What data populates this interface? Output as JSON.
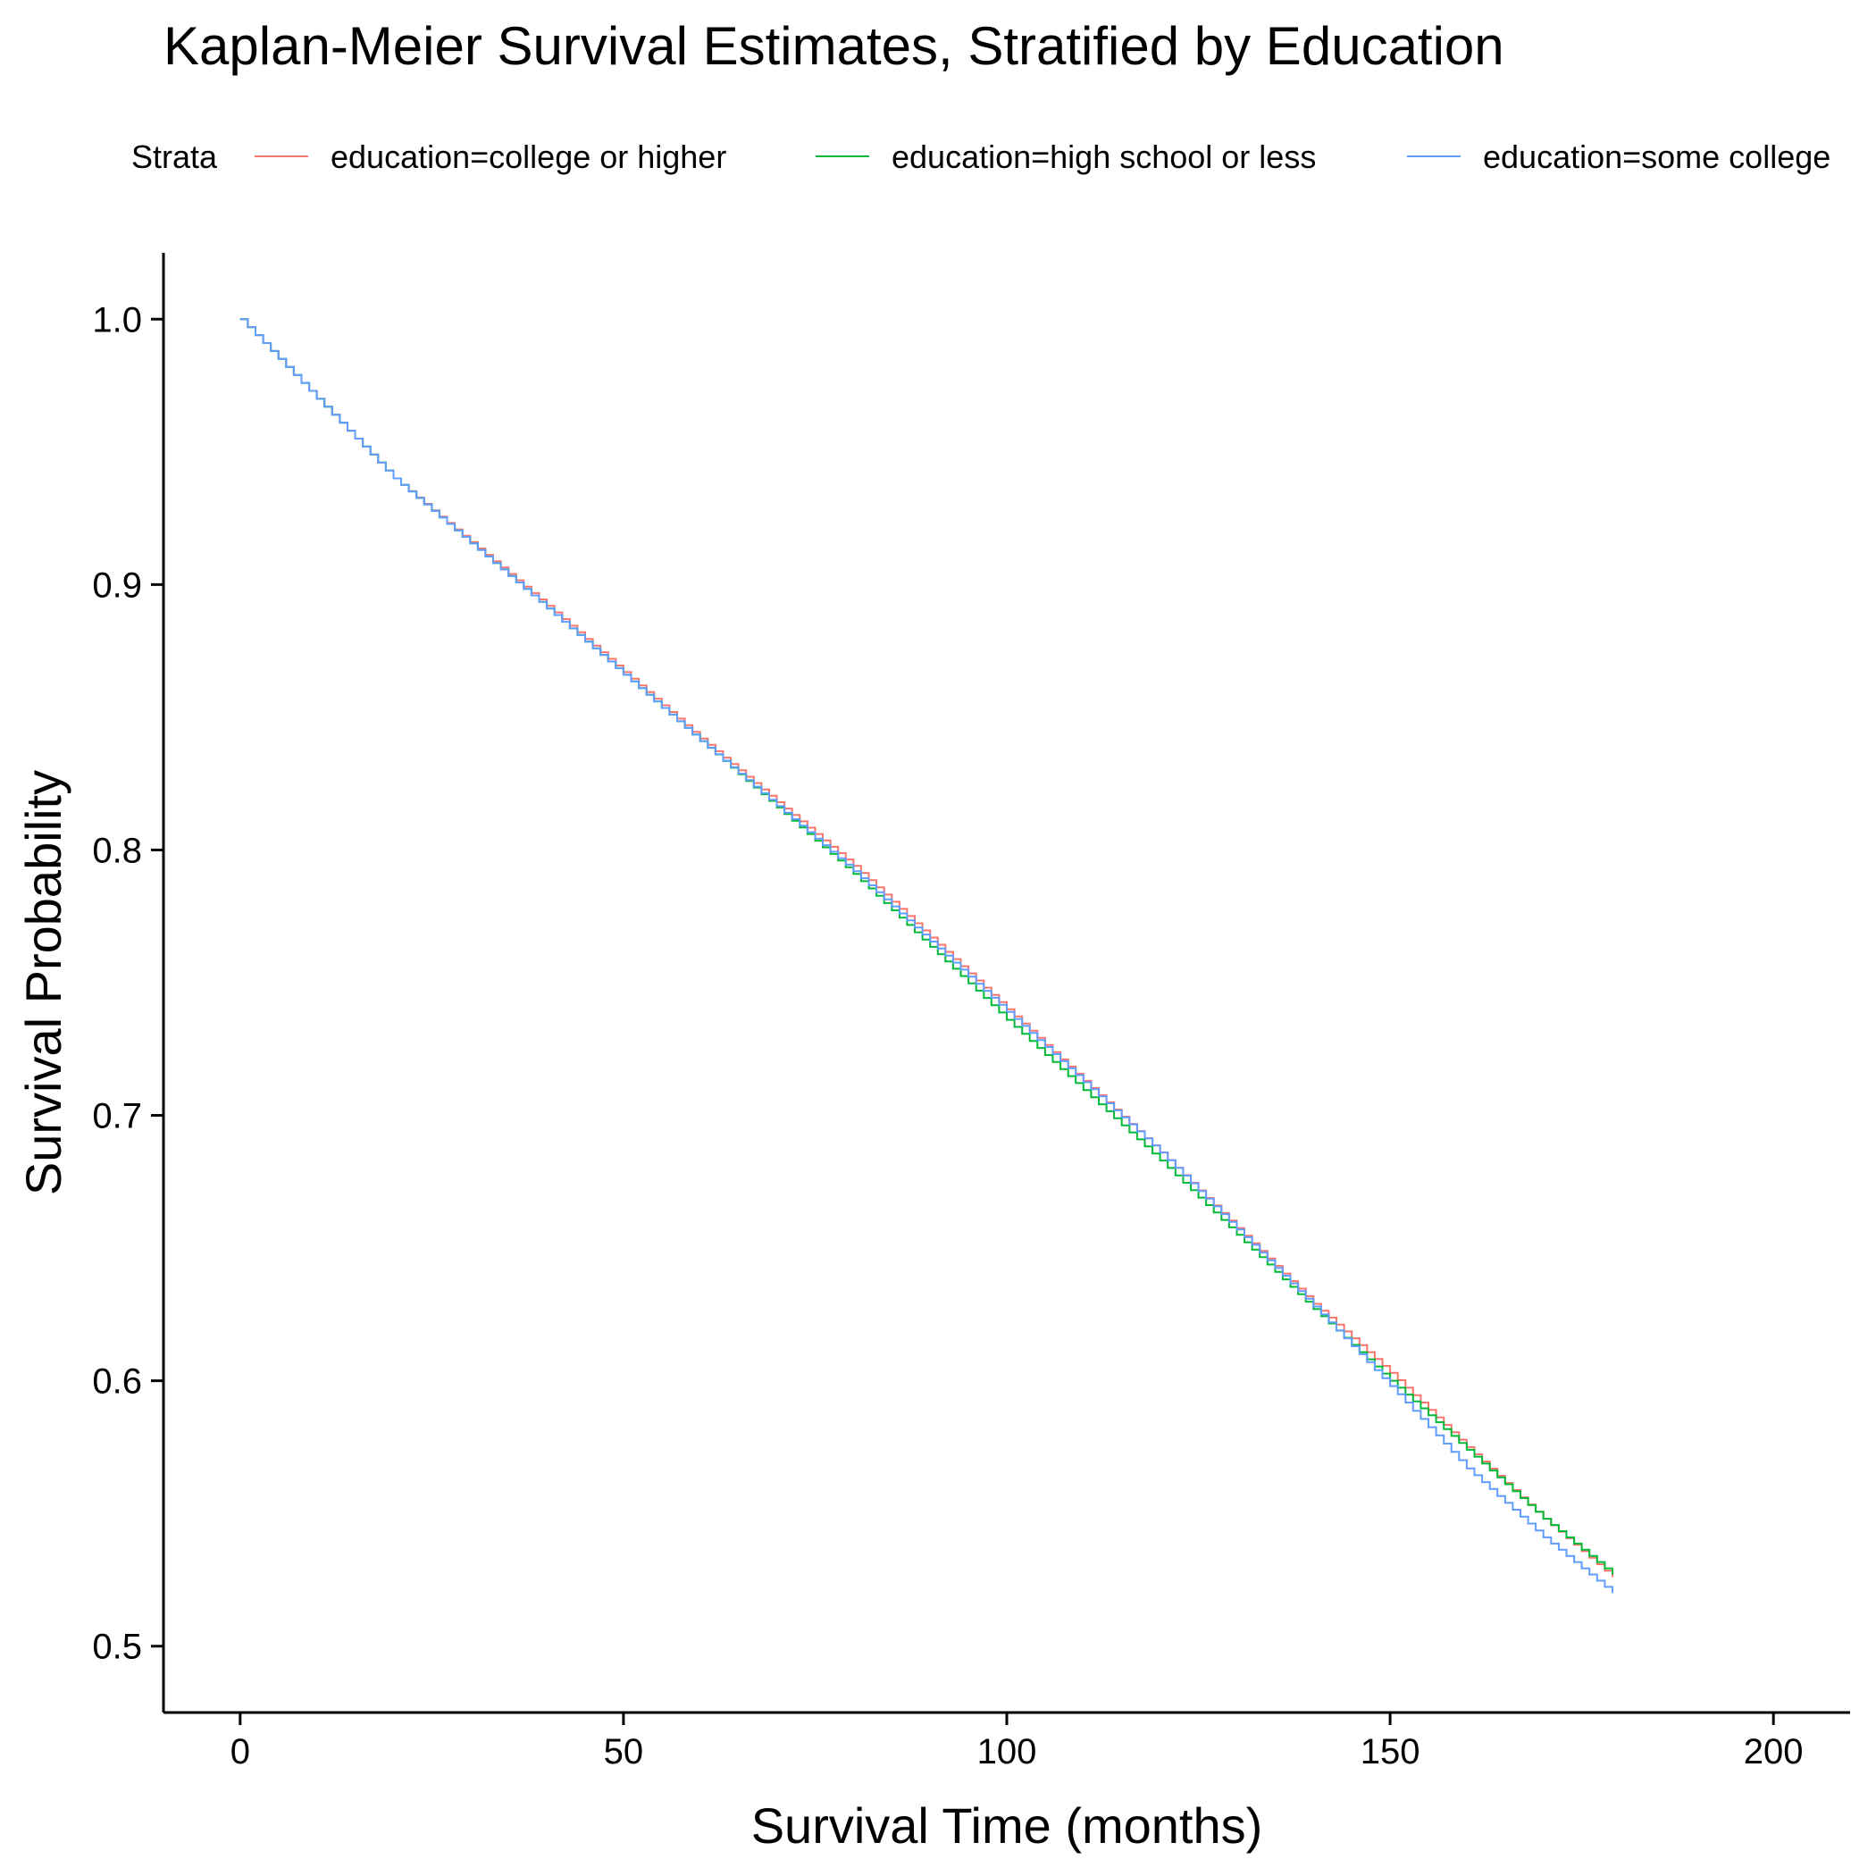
{
  "chart_data": {
    "type": "line",
    "step": true,
    "title": "Kaplan-Meier Survival Estimates, Stratified by Education",
    "xlabel": "Survival Time (months)",
    "ylabel": "Survival Probability",
    "xlim": [
      -10,
      210
    ],
    "ylim": [
      0.475,
      1.025
    ],
    "xticks": [
      0,
      50,
      100,
      150,
      200
    ],
    "yticks": [
      0.5,
      0.6,
      0.7,
      0.8,
      0.9,
      1.0
    ],
    "xtick_labels": [
      "0",
      "50",
      "100",
      "150",
      "200"
    ],
    "ytick_labels": [
      "0.5",
      "0.6",
      "0.7",
      "0.8",
      "0.9",
      "1.0"
    ],
    "grid": false,
    "legend": {
      "title": "Strata",
      "position": "top"
    },
    "series": [
      {
        "name": "education=college or higher",
        "color": "#F8766D",
        "x": [
          0,
          20,
          40,
          60,
          80,
          100,
          120,
          140,
          150,
          160,
          170,
          179
        ],
        "y": [
          1.0,
          0.94,
          0.892,
          0.842,
          0.794,
          0.74,
          0.686,
          0.629,
          0.603,
          0.575,
          0.548,
          0.526
        ]
      },
      {
        "name": "education=high school or less",
        "color": "#00BA38",
        "x": [
          0,
          20,
          40,
          60,
          80,
          100,
          120,
          140,
          150,
          160,
          170,
          179
        ],
        "y": [
          1.0,
          0.94,
          0.891,
          0.841,
          0.791,
          0.736,
          0.683,
          0.627,
          0.6,
          0.574,
          0.548,
          0.527
        ]
      },
      {
        "name": "education=some college",
        "color": "#619CFF",
        "x": [
          0,
          20,
          40,
          60,
          80,
          100,
          120,
          140,
          150,
          160,
          170,
          179
        ],
        "y": [
          1.0,
          0.94,
          0.891,
          0.841,
          0.792,
          0.739,
          0.686,
          0.628,
          0.598,
          0.567,
          0.541,
          0.52
        ]
      }
    ]
  }
}
